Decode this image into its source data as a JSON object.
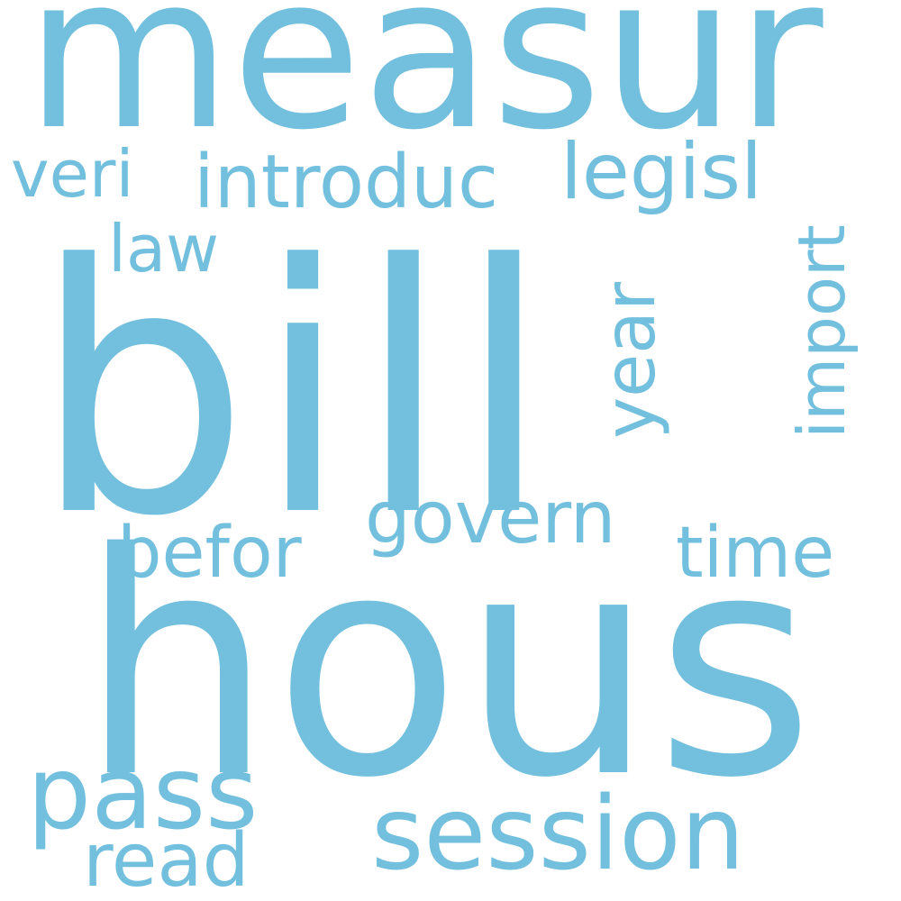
{
  "cloud": {
    "color": "#72bfde",
    "background": "#ffffff",
    "words": {
      "bill": "bill",
      "hous": "hous",
      "measur": "measur",
      "introduc": "introduc",
      "veri": "veri",
      "legisl": "legisl",
      "law": "law",
      "year": "year",
      "import": "import",
      "govern": "govern",
      "befor": "befor",
      "time": "time",
      "pass": "pass",
      "session": "session",
      "read": "read"
    },
    "vertical_words": [
      "year",
      "import"
    ]
  }
}
